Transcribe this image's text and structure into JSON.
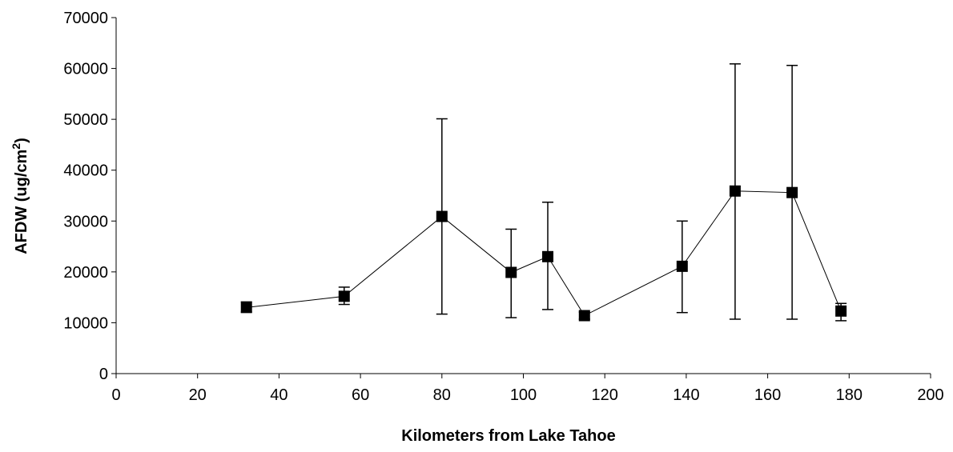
{
  "chart_data": {
    "type": "scatter",
    "title": "",
    "xlabel": "Kilometers from Lake Tahoe",
    "ylabel": {
      "base": "AFDW (ug/cm",
      "sup": "2",
      "end": ")"
    },
    "xlim": [
      0,
      200
    ],
    "ylim": [
      0,
      70000
    ],
    "x_ticks": [
      0,
      20,
      40,
      60,
      80,
      100,
      120,
      140,
      160,
      180,
      200
    ],
    "y_ticks": [
      0,
      10000,
      20000,
      30000,
      40000,
      50000,
      60000,
      70000
    ],
    "grid": false,
    "legend": "none",
    "marker": "square",
    "line_color": "#000000",
    "marker_color": "#000000",
    "series": [
      {
        "points": [
          {
            "x": 32,
            "y": 13000,
            "err_low": 12100,
            "err_high": 14100
          },
          {
            "x": 56,
            "y": 15200,
            "err_low": 13600,
            "err_high": 17000
          },
          {
            "x": 80,
            "y": 30900,
            "err_low": 11700,
            "err_high": 50100
          },
          {
            "x": 97,
            "y": 19900,
            "err_low": 11000,
            "err_high": 28400
          },
          {
            "x": 106,
            "y": 23000,
            "err_low": 12600,
            "err_high": 33700
          },
          {
            "x": 115,
            "y": 11400,
            "err_low": 10700,
            "err_high": 12100
          },
          {
            "x": 139,
            "y": 21100,
            "err_low": 12000,
            "err_high": 30000
          },
          {
            "x": 152,
            "y": 35900,
            "err_low": 10700,
            "err_high": 60900
          },
          {
            "x": 166,
            "y": 35600,
            "err_low": 10700,
            "err_high": 60600
          },
          {
            "x": 178,
            "y": 12300,
            "err_low": 10400,
            "err_high": 13800
          }
        ]
      }
    ]
  }
}
